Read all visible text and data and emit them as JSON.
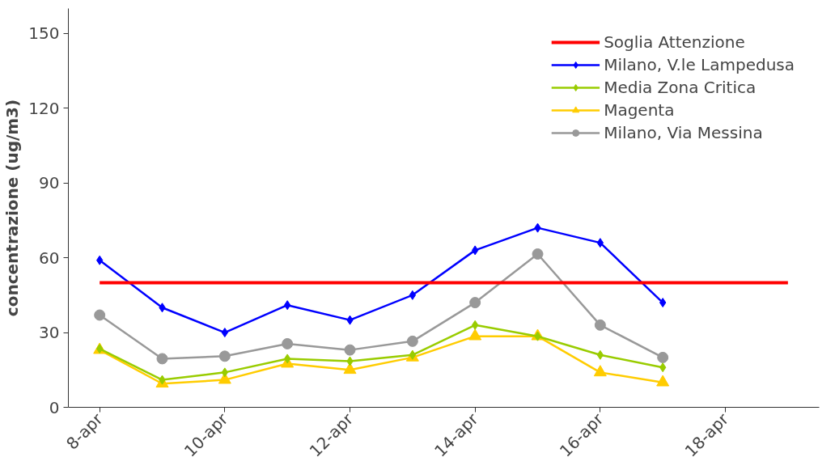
{
  "chart_data": {
    "type": "line",
    "ylabel": "concentrazione (ug/m3)",
    "categories": [
      "8-apr",
      null,
      "10-apr",
      null,
      "12-apr",
      null,
      "14-apr",
      null,
      "16-apr",
      null,
      "18-apr",
      null
    ],
    "ylim": [
      0,
      160
    ],
    "yticks": [
      0,
      30,
      60,
      90,
      120,
      150
    ],
    "grid": false,
    "legend": "top right",
    "series": [
      {
        "name": "Soglia Attenzione",
        "color": "#ff0000",
        "marker": "none",
        "values": [
          50,
          50,
          50,
          50,
          50,
          50,
          50,
          50,
          50,
          50,
          50,
          50
        ]
      },
      {
        "name": "Milano, V.le Lampedusa",
        "color": "#0000ff",
        "marker": "diamond",
        "values": [
          59,
          40,
          30,
          41,
          35,
          45,
          63,
          72,
          66,
          42,
          null,
          null
        ]
      },
      {
        "name": "Media Zona Critica",
        "color": "#99cc00",
        "marker": "diamond",
        "values": [
          23.5,
          11,
          14,
          19.5,
          18.5,
          21,
          33,
          28.5,
          21,
          16,
          null,
          null
        ]
      },
      {
        "name": "Magenta",
        "color": "#ffcc00",
        "marker": "triangle",
        "values": [
          23,
          9.5,
          11,
          17.5,
          15,
          20,
          28.5,
          28.5,
          14,
          10,
          null,
          null
        ]
      },
      {
        "name": "Milano, Via Messina",
        "color": "#999999",
        "marker": "circle",
        "values": [
          37,
          19.5,
          20.5,
          25.5,
          23,
          26.5,
          42,
          61.5,
          33,
          20,
          null,
          null
        ]
      }
    ]
  }
}
